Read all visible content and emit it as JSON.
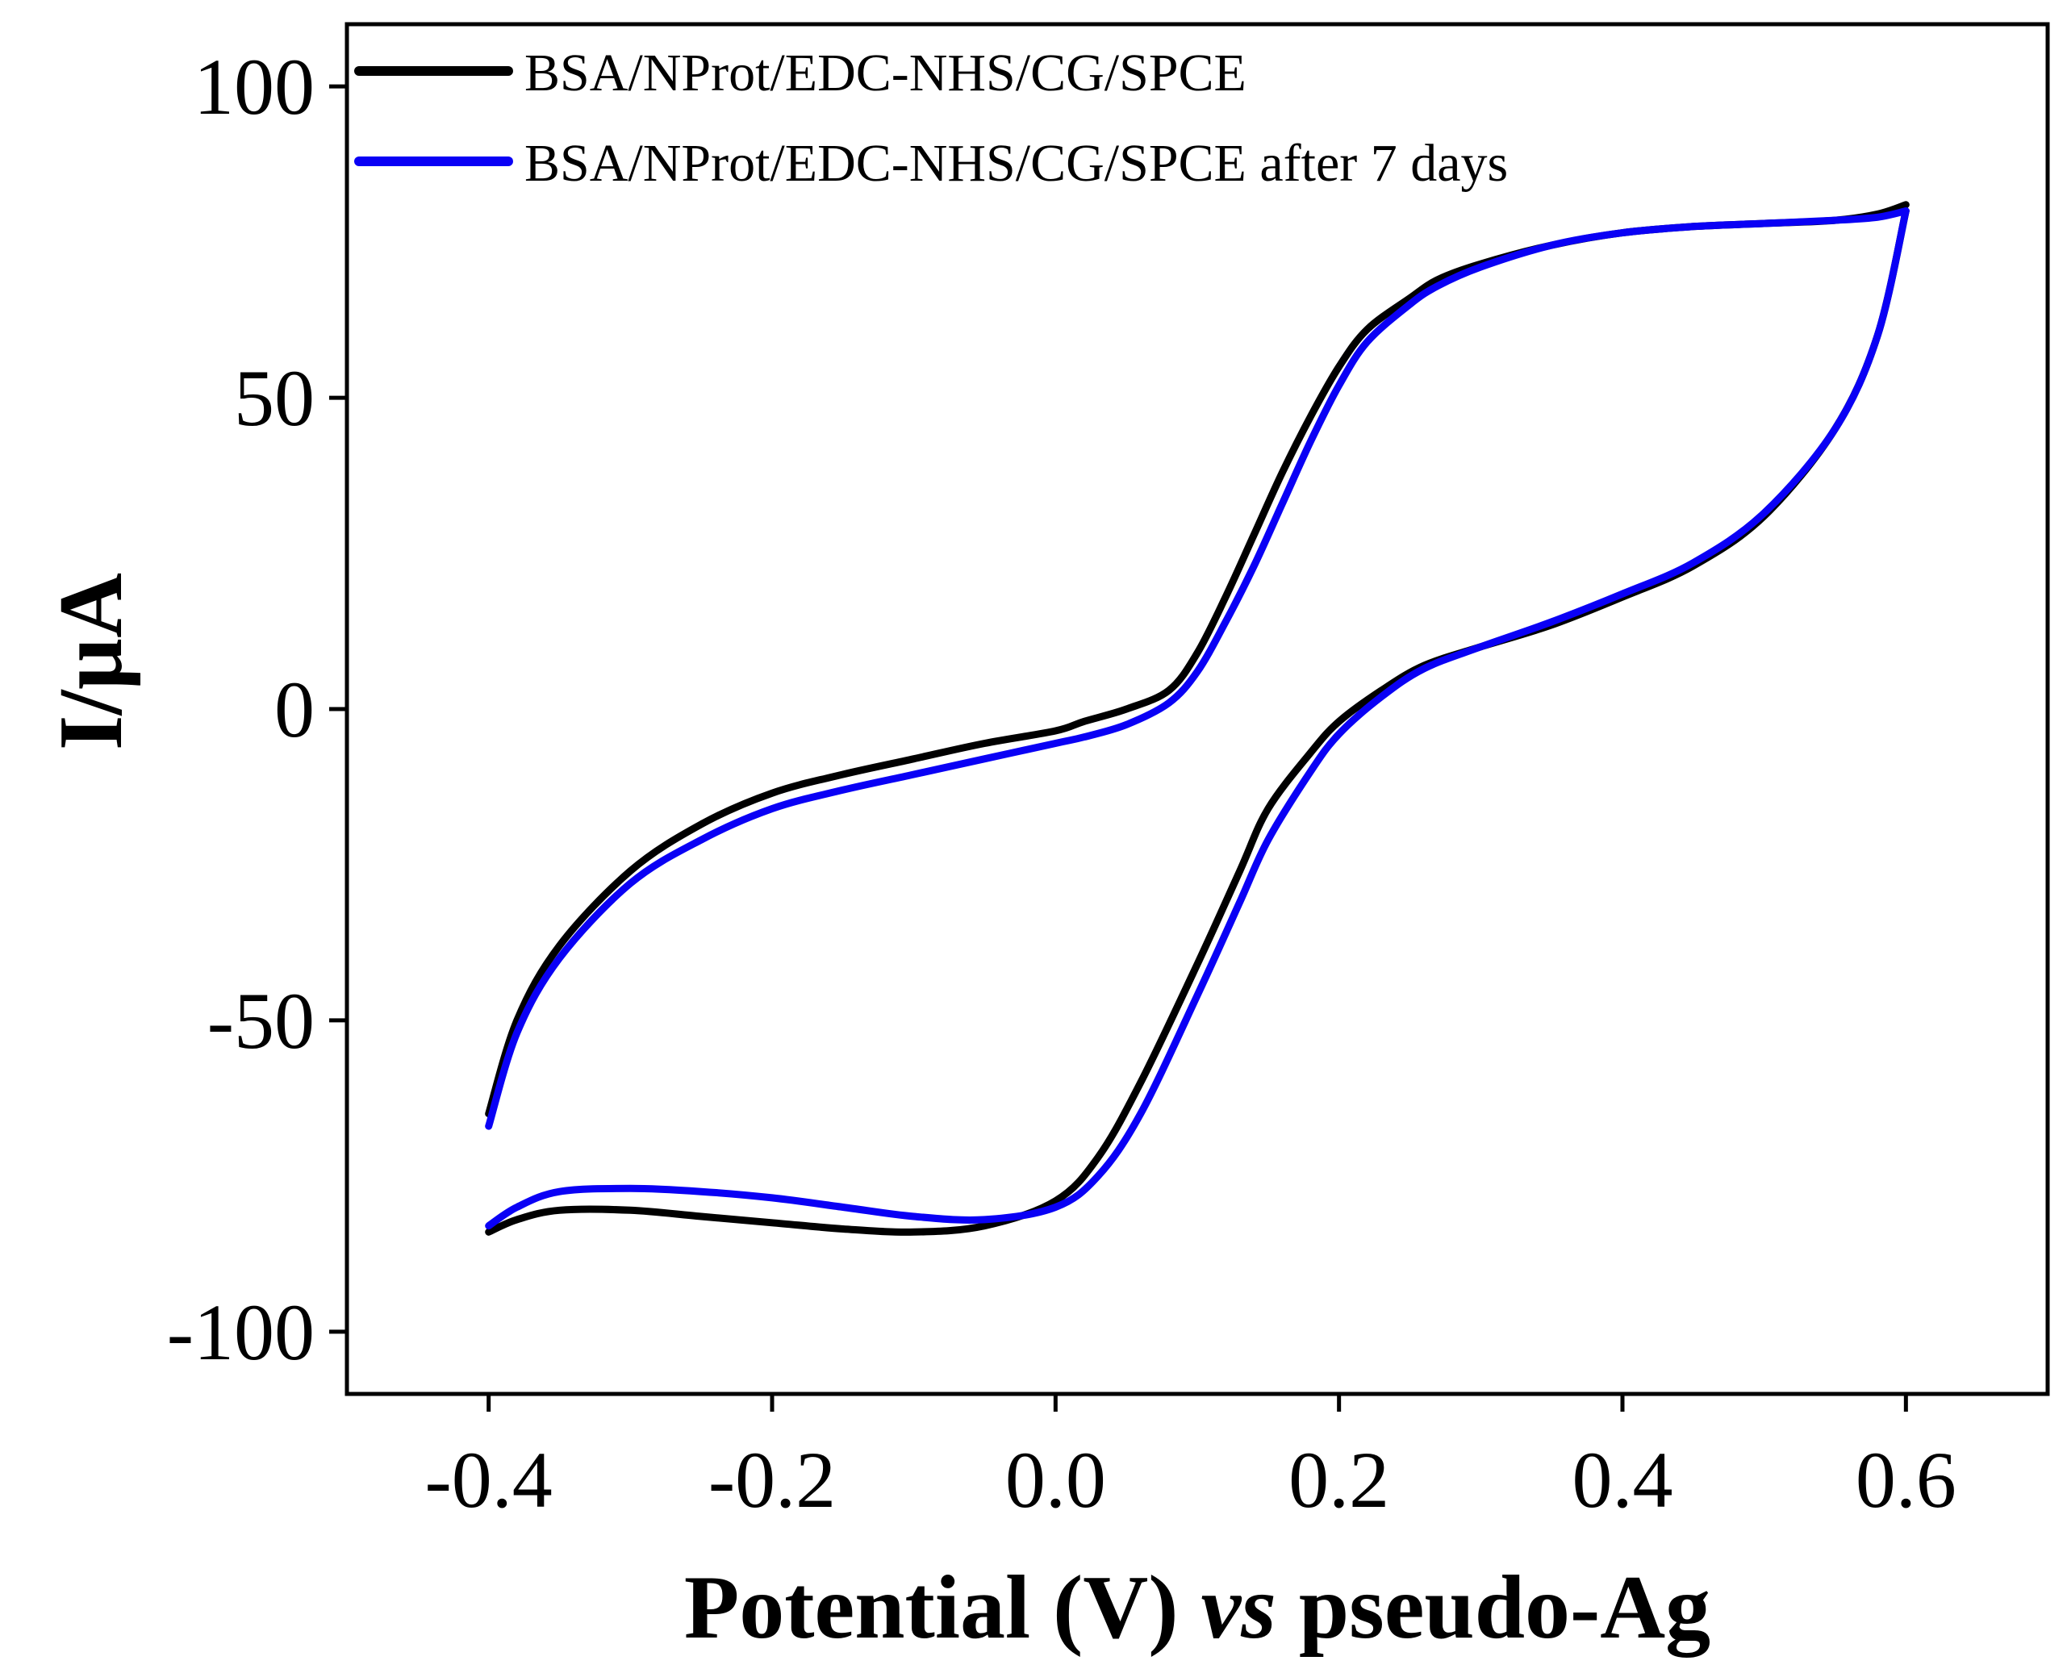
{
  "chart_data": {
    "type": "line",
    "title": "",
    "xlabel": {
      "part1": "Potential (V) ",
      "part2": "vs",
      "part3": " pseudo-Ag"
    },
    "ylabel": "I/µA",
    "xlim": [
      -0.5,
      0.7
    ],
    "ylim": [
      -110,
      110
    ],
    "xticks": [
      -0.4,
      -0.2,
      0.0,
      0.2,
      0.4,
      0.6
    ],
    "xtick_labels": [
      "-0.4",
      "-0.2",
      "0.0",
      "0.2",
      "0.4",
      "0.6"
    ],
    "yticks": [
      100,
      50,
      0,
      -50,
      -100
    ],
    "ytick_labels": [
      "100",
      "50",
      "0",
      "-50",
      "-100"
    ],
    "grid": false,
    "legend_position": "top-left",
    "series": [
      {
        "name": "BSA/NProt/EDC-NHS/CG/SPCE",
        "color": "#000000",
        "anodic": {
          "x": [
            -0.4,
            -0.38,
            -0.35,
            -0.3,
            -0.25,
            -0.2,
            -0.15,
            -0.1,
            -0.05,
            0.0,
            0.03,
            0.06,
            0.1,
            0.13,
            0.15,
            0.18,
            0.2,
            0.23,
            0.26,
            0.3,
            0.35,
            0.4,
            0.45,
            0.5,
            0.55,
            0.58,
            0.6
          ],
          "y": [
            -84,
            -82,
            -80.5,
            -80.5,
            -81.5,
            -82.5,
            -83.5,
            -84,
            -83,
            -79,
            -72,
            -60,
            -41,
            -26,
            -16,
            -7,
            -2,
            3,
            7,
            10,
            13.5,
            18,
            23,
            31,
            45,
            60,
            80
          ]
        },
        "cathodic": {
          "x": [
            0.6,
            0.58,
            0.55,
            0.5,
            0.45,
            0.4,
            0.35,
            0.3,
            0.27,
            0.25,
            0.22,
            0.2,
            0.18,
            0.16,
            0.14,
            0.12,
            0.1,
            0.08,
            0.05,
            0.02,
            0.0,
            -0.05,
            -0.1,
            -0.15,
            -0.2,
            -0.25,
            -0.3,
            -0.35,
            -0.38,
            -0.4
          ],
          "y": [
            81,
            79.5,
            78.5,
            78,
            77.5,
            76.5,
            74.5,
            71.5,
            69,
            66,
            61,
            55,
            47,
            38,
            28,
            18,
            9,
            3,
            0,
            -2,
            -3.5,
            -5.5,
            -8,
            -10.5,
            -13.5,
            -18.5,
            -26,
            -38,
            -50,
            -65
          ]
        }
      },
      {
        "name": "BSA/NProt/EDC-NHS/CG/SPCE after 7 days",
        "color": "#0a00f5",
        "anodic": {
          "x": [
            -0.4,
            -0.38,
            -0.35,
            -0.3,
            -0.25,
            -0.2,
            -0.15,
            -0.1,
            -0.05,
            0.0,
            0.03,
            0.06,
            0.1,
            0.13,
            0.15,
            0.18,
            0.2,
            0.23,
            0.26,
            0.3,
            0.35,
            0.4,
            0.45,
            0.5,
            0.55,
            0.58,
            0.6
          ],
          "y": [
            -83,
            -80,
            -77.5,
            -77,
            -77.5,
            -78.5,
            -80,
            -81.5,
            -82,
            -80,
            -75,
            -65,
            -46,
            -31,
            -21,
            -10,
            -4,
            2,
            6.5,
            10,
            14,
            18.5,
            23.5,
            31.5,
            45,
            60,
            80
          ]
        },
        "cathodic": {
          "x": [
            0.6,
            0.58,
            0.55,
            0.5,
            0.45,
            0.4,
            0.35,
            0.3,
            0.27,
            0.25,
            0.22,
            0.2,
            0.18,
            0.16,
            0.14,
            0.12,
            0.1,
            0.08,
            0.05,
            0.02,
            0.0,
            -0.05,
            -0.1,
            -0.15,
            -0.2,
            -0.25,
            -0.3,
            -0.35,
            -0.38,
            -0.4
          ],
          "y": [
            80,
            79,
            78.5,
            78,
            77.5,
            76.5,
            74.5,
            71,
            68,
            65,
            59,
            52,
            43,
            33,
            23,
            14,
            6,
            1,
            -2.5,
            -4.5,
            -5.5,
            -8,
            -10.5,
            -13,
            -16,
            -21,
            -28,
            -40,
            -52,
            -67
          ]
        }
      }
    ]
  }
}
